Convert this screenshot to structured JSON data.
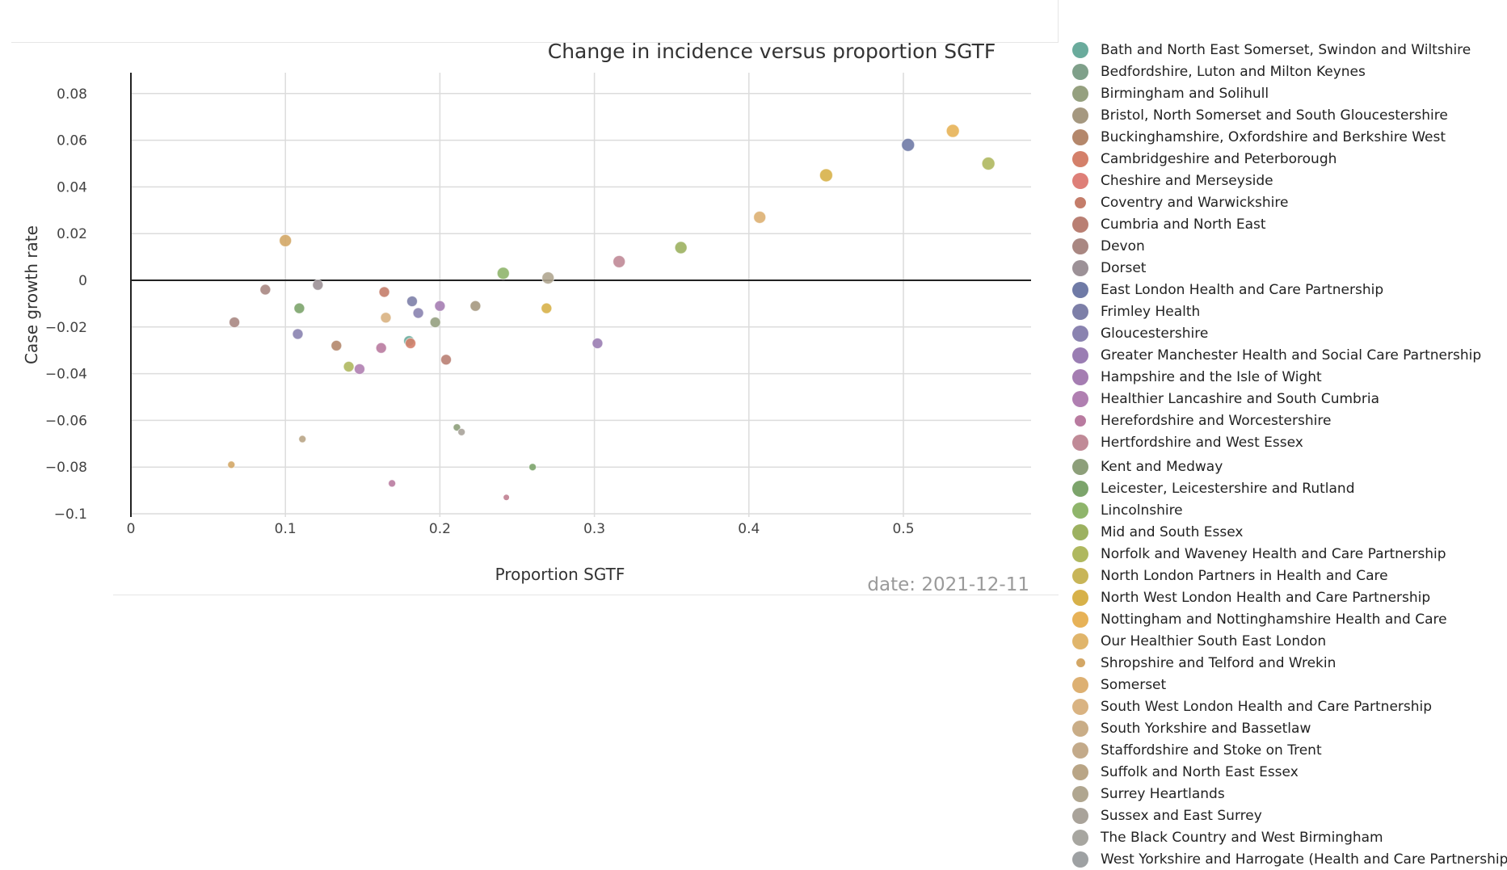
{
  "chart_data": {
    "type": "scatter",
    "title": "Change in incidence versus proportion SGTF",
    "xlabel": "Proportion SGTF",
    "ylabel": "Case growth rate",
    "xlim": [
      0,
      0.58
    ],
    "ylim": [
      -0.1,
      0.09
    ],
    "x_ticks": [
      "0",
      "0.1",
      "0.2",
      "0.3",
      "0.4",
      "0.5"
    ],
    "y_ticks": [
      "0.08",
      "0.06",
      "0.04",
      "0.02",
      "0",
      "−0.02",
      "−0.04",
      "−0.06",
      "−0.08",
      "−0.1"
    ],
    "grid": true,
    "legend_position": "right",
    "annotation": "date: 2021-12-11",
    "series": [
      {
        "name": "Bath and North East Somerset, Swindon and Wiltshire",
        "color": "#6aab9c",
        "points": [
          [
            0.18,
            -0.026
          ]
        ]
      },
      {
        "name": "Bedfordshire, Luton and Milton Keynes",
        "color": "#7fa08a",
        "points": []
      },
      {
        "name": "Birmingham and Solihull",
        "color": "#95a07f",
        "points": [
          [
            0.197,
            -0.018
          ]
        ]
      },
      {
        "name": "Bristol, North Somerset and South Gloucestershire",
        "color": "#a59880",
        "points": [
          [
            0.223,
            -0.011
          ]
        ]
      },
      {
        "name": "Buckinghamshire, Oxfordshire and Berkshire West",
        "color": "#b4876b",
        "points": [
          [
            0.133,
            -0.028
          ]
        ]
      },
      {
        "name": "Cambridgeshire and Peterborough",
        "color": "#d4806a",
        "points": [
          [
            0.181,
            -0.027
          ]
        ]
      },
      {
        "name": "Cheshire and Merseyside",
        "color": "#de7f78",
        "points": []
      },
      {
        "name": "Coventry and Warwickshire",
        "color": "#c47d6a",
        "points": [
          [
            0.164,
            -0.005
          ]
        ]
      },
      {
        "name": "Cumbria and North East",
        "color": "#b97f73",
        "points": [
          [
            0.204,
            -0.034
          ]
        ]
      },
      {
        "name": "Devon",
        "color": "#a98782",
        "points": [
          [
            0.087,
            -0.004
          ],
          [
            0.067,
            -0.018
          ]
        ]
      },
      {
        "name": "Dorset",
        "color": "#9c9197",
        "points": [
          [
            0.121,
            -0.002
          ]
        ]
      },
      {
        "name": "East London Health and Care Partnership",
        "color": "#6f7aa6",
        "points": [
          [
            0.503,
            0.058
          ]
        ]
      },
      {
        "name": "Frimley Health",
        "color": "#7d7fa8",
        "points": [
          [
            0.182,
            -0.009
          ]
        ]
      },
      {
        "name": "Gloucestershire",
        "color": "#8a83b0",
        "points": [
          [
            0.186,
            -0.014
          ],
          [
            0.108,
            -0.023
          ]
        ]
      },
      {
        "name": "Greater Manchester Health and Social Care Partnership",
        "color": "#9a7db3",
        "points": [
          [
            0.302,
            -0.027
          ]
        ]
      },
      {
        "name": "Hampshire and the Isle of Wight",
        "color": "#a57db2",
        "points": [
          [
            0.2,
            -0.011
          ]
        ]
      },
      {
        "name": "Healthier Lancashire and South Cumbria",
        "color": "#b07fb1",
        "points": [
          [
            0.148,
            -0.038
          ]
        ]
      },
      {
        "name": "Herefordshire and Worcestershire",
        "color": "#b97ba0",
        "points": [
          [
            0.162,
            -0.029
          ],
          [
            0.169,
            -0.087
          ]
        ]
      },
      {
        "name": "Hertfordshire and West Essex",
        "color": "#c08a97",
        "points": [
          [
            0.316,
            0.008
          ]
        ]
      },
      {
        "name": "Kent and Medway",
        "color": "#8d9f7a",
        "points": [
          [
            0.211,
            -0.063
          ]
        ]
      },
      {
        "name": "Leicester, Leicestershire and Rutland",
        "color": "#7ca46b",
        "points": [
          [
            0.109,
            -0.012
          ],
          [
            0.26,
            -0.08
          ]
        ]
      },
      {
        "name": "Lincolnshire",
        "color": "#8fb56b",
        "points": [
          [
            0.241,
            0.003
          ]
        ]
      },
      {
        "name": "Mid and South Essex",
        "color": "#9cb160",
        "points": [
          [
            0.356,
            0.014
          ]
        ]
      },
      {
        "name": "Norfolk and Waveney Health and Care Partnership",
        "color": "#afb85f",
        "points": [
          [
            0.555,
            0.05
          ],
          [
            0.141,
            -0.037
          ]
        ]
      },
      {
        "name": "North London Partners in Health and Care",
        "color": "#c8b558",
        "points": []
      },
      {
        "name": "North West London Health and Care Partnership",
        "color": "#d7b149",
        "points": [
          [
            0.269,
            -0.012
          ],
          [
            0.45,
            0.045
          ]
        ]
      },
      {
        "name": "Nottingham and Nottinghamshire Health and Care",
        "color": "#e7b257",
        "points": [
          [
            0.532,
            0.064
          ]
        ]
      },
      {
        "name": "Our Healthier South East London",
        "color": "#e0b56b",
        "points": []
      },
      {
        "name": "Shropshire and Telford and Wrekin",
        "color": "#d3a766",
        "points": [
          [
            0.1,
            0.017
          ],
          [
            0.065,
            -0.079
          ]
        ]
      },
      {
        "name": "Somerset",
        "color": "#ddb072",
        "points": [
          [
            0.407,
            0.027
          ]
        ]
      },
      {
        "name": "South West London Health and Care Partnership",
        "color": "#d9b382",
        "points": [
          [
            0.165,
            -0.016
          ]
        ]
      },
      {
        "name": "South Yorkshire and Bassetlaw",
        "color": "#c9ad87",
        "points": []
      },
      {
        "name": "Staffordshire and Stoke on Trent",
        "color": "#c3aa8a",
        "points": []
      },
      {
        "name": "Suffolk and North East Essex",
        "color": "#b9a586",
        "points": [
          [
            0.111,
            -0.068
          ]
        ]
      },
      {
        "name": "Surrey Heartlands",
        "color": "#b0a690",
        "points": [
          [
            0.27,
            0.001
          ]
        ]
      },
      {
        "name": "Sussex and East Surrey",
        "color": "#a9a39a",
        "points": [
          [
            0.214,
            -0.065
          ]
        ]
      },
      {
        "name": "The Black Country and West Birmingham",
        "color": "#a7a6a0",
        "points": []
      },
      {
        "name": "West Yorkshire and Harrogate (Health and Care Partnership)",
        "color": "#9ea1a3",
        "points": []
      }
    ],
    "extra_points": [
      {
        "name": "Hertfordshire and West Essex",
        "color": "#c07f91",
        "x": 0.243,
        "y": -0.093
      }
    ]
  },
  "legend_sizes": [
    "lg",
    "lg",
    "lg",
    "lg",
    "lg",
    "lg",
    "lg",
    "md",
    "lg",
    "lg",
    "lg",
    "lg",
    "lg",
    "lg",
    "lg",
    "lg",
    "lg",
    "md",
    "lg",
    "lg",
    "lg",
    "lg",
    "lg",
    "lg",
    "lg",
    "lg",
    "lg",
    "lg",
    "sm",
    "lg",
    "lg",
    "lg",
    "lg",
    "lg",
    "lg",
    "lg",
    "lg",
    "lg"
  ]
}
